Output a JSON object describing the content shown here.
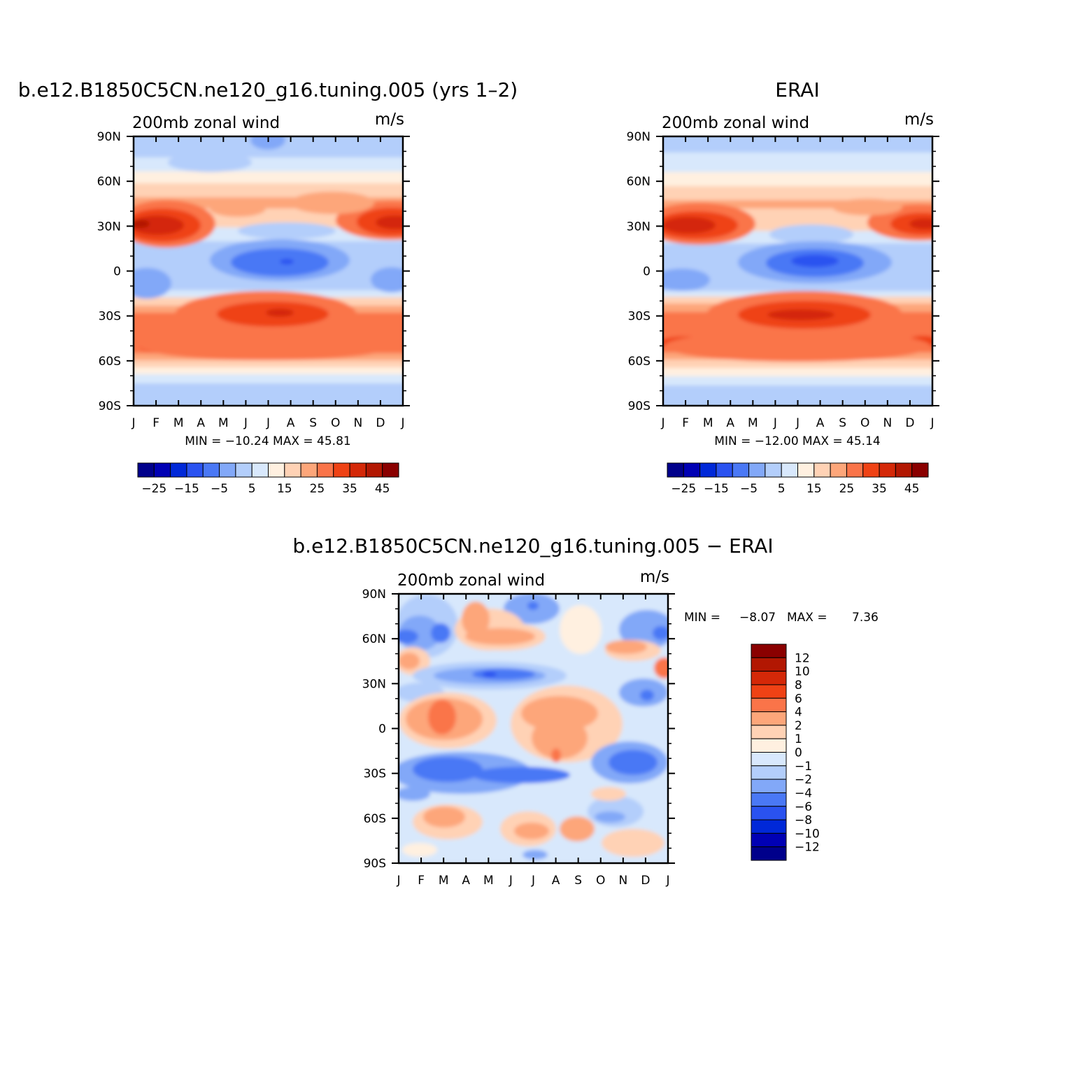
{
  "months": [
    "J",
    "F",
    "M",
    "A",
    "M",
    "J",
    "J",
    "A",
    "S",
    "O",
    "N",
    "D",
    "J"
  ],
  "lat_labels": [
    "90N",
    "60N",
    "30N",
    "0",
    "30S",
    "60S",
    "90S"
  ],
  "palette": {
    "full": [
      "#00008b",
      "#0000b4",
      "#0028d8",
      "#2a52f0",
      "#4a78f5",
      "#82a8f8",
      "#b3cefb",
      "#d8e8fc",
      "#fff0e0",
      "#ffd2b5",
      "#fda67a",
      "#fa7449",
      "#ef4215",
      "#d42808",
      "#b21702",
      "#8a0000"
    ],
    "diff": [
      "#00008b",
      "#0000b4",
      "#0028d8",
      "#2a52f0",
      "#4a78f5",
      "#82a8f8",
      "#b3cefb",
      "#d8e8fc",
      "#fff0e0",
      "#ffd2b5",
      "#fda67a",
      "#fa7449",
      "#ef4215",
      "#d42808",
      "#b21702",
      "#8a0000"
    ]
  },
  "panel_model": {
    "title": "b.e12.B1850C5CN.ne120_g16.tuning.005 (yrs 1–2)",
    "left_label": "200mb zonal wind",
    "right_label": "m/s",
    "min_max": "MIN = −10.24 MAX = 45.81",
    "colorbar_labels": [
      "−25",
      "−15",
      "−5",
      "5",
      "15",
      "25",
      "35",
      "45"
    ]
  },
  "panel_obs": {
    "title": "ERAI",
    "left_label": "200mb zonal wind",
    "right_label": "m/s",
    "min_max": "MIN = −12.00 MAX = 45.14",
    "colorbar_labels": [
      "−25",
      "−15",
      "−5",
      "5",
      "15",
      "25",
      "35",
      "45"
    ]
  },
  "panel_diff": {
    "title": "b.e12.B1850C5CN.ne120_g16.tuning.005 − ERAI",
    "left_label": "200mb zonal wind",
    "right_label": "m/s",
    "min_max_label": "MIN =",
    "min_value": "−8.07",
    "max_label": "MAX =",
    "max_value": "7.36",
    "colorbar_labels": [
      "12",
      "10",
      "8",
      "6",
      "4",
      "2",
      "1",
      "0",
      "−1",
      "−2",
      "−4",
      "−6",
      "−8",
      "−10",
      "−12"
    ]
  },
  "chart_data": [
    {
      "type": "heatmap",
      "title": "b.e12.B1850C5CN.ne120_g16.tuning.005 (yrs 1–2)",
      "variable": "200mb zonal wind",
      "units": "m/s",
      "x": [
        "J",
        "F",
        "M",
        "A",
        "M",
        "J",
        "J",
        "A",
        "S",
        "O",
        "N",
        "D",
        "J"
      ],
      "y": [
        90,
        60,
        30,
        0,
        -30,
        -60,
        -90
      ],
      "ylabel_ticks": [
        "90N",
        "60N",
        "30N",
        "0",
        "30S",
        "60S",
        "90S"
      ],
      "levels": [
        -30,
        -25,
        -20,
        -15,
        -10,
        -5,
        0,
        5,
        10,
        15,
        20,
        25,
        30,
        35,
        40,
        45
      ],
      "features": [
        {
          "desc": "NH subtropical jet",
          "lat": 30,
          "months": [
            "J",
            "F",
            "M",
            "D"
          ],
          "max": 45
        },
        {
          "desc": "SH subtropical jet",
          "lat": -28,
          "months": [
            "J",
            "A"
          ],
          "max": 40
        },
        {
          "desc": "tropical easterlies",
          "lat": 5,
          "months": [
            "J",
            "A"
          ],
          "min": -10
        }
      ],
      "min": -10.24,
      "max": 45.81
    },
    {
      "type": "heatmap",
      "title": "ERAI",
      "variable": "200mb zonal wind",
      "units": "m/s",
      "x": [
        "J",
        "F",
        "M",
        "A",
        "M",
        "J",
        "J",
        "A",
        "S",
        "O",
        "N",
        "D",
        "J"
      ],
      "y": [
        90,
        60,
        30,
        0,
        -30,
        -60,
        -90
      ],
      "levels": [
        -30,
        -25,
        -20,
        -15,
        -10,
        -5,
        0,
        5,
        10,
        15,
        20,
        25,
        30,
        35,
        40,
        45
      ],
      "features": [
        {
          "desc": "NH subtropical jet",
          "lat": 30,
          "months": [
            "J",
            "F",
            "D"
          ],
          "max": 45
        },
        {
          "desc": "SH subtropical jet",
          "lat": -30,
          "months": [
            "J",
            "A"
          ],
          "max": 40
        },
        {
          "desc": "tropical easterlies",
          "lat": 7,
          "months": [
            "J",
            "A"
          ],
          "min": -12
        }
      ],
      "min": -12.0,
      "max": 45.14
    },
    {
      "type": "heatmap",
      "title": "b.e12.B1850C5CN.ne120_g16.tuning.005 − ERAI",
      "variable": "200mb zonal wind",
      "units": "m/s",
      "x": [
        "J",
        "F",
        "M",
        "A",
        "M",
        "J",
        "J",
        "A",
        "S",
        "O",
        "N",
        "D",
        "J"
      ],
      "y": [
        90,
        60,
        30,
        0,
        -30,
        -60,
        -90
      ],
      "levels": [
        -12,
        -10,
        -8,
        -6,
        -4,
        -2,
        -1,
        0,
        1,
        2,
        4,
        6,
        8,
        10,
        12
      ],
      "min": -8.07,
      "max": 7.36
    }
  ]
}
